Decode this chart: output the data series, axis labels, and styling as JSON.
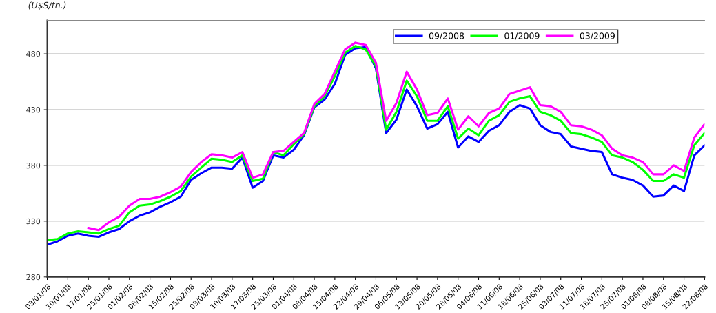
{
  "chart_data": {
    "type": "line",
    "ylabel": "(U$S/tn.)",
    "categories": [
      "03/01/08",
      null,
      "10/01/08",
      null,
      "17/01/08",
      null,
      "25/01/08",
      null,
      "01/02/08",
      null,
      "08/02/08",
      null,
      "15/02/08",
      null,
      "25/02/08",
      null,
      "03/03/08",
      null,
      "10/03/08",
      null,
      "17/03/08",
      null,
      "25/03/08",
      null,
      "01/04/08",
      null,
      "08/04/08",
      null,
      "15/04/08",
      null,
      "22/04/08",
      null,
      "29/04/08",
      null,
      "06/05/08",
      null,
      "13/05/08",
      null,
      "20/05/08",
      null,
      "28/05/08",
      null,
      "04/06/08",
      null,
      "11/06/08",
      null,
      "18/06/08",
      null,
      "25/06/08",
      null,
      "03/07/08",
      null,
      "11/07/08",
      null,
      "18/07/08",
      null,
      "25/07/08",
      null,
      "01/08/08",
      null,
      "08/08/08",
      null,
      "15/08/08",
      null,
      "22/08/08"
    ],
    "series": [
      {
        "name": "09/2008",
        "color": "#0000ff",
        "values": [
          309,
          312,
          317,
          319,
          317,
          316,
          320,
          323,
          330,
          335,
          338,
          343,
          347,
          352,
          367,
          373,
          378,
          378,
          377,
          387,
          360,
          366,
          389,
          387,
          394,
          407,
          432,
          439,
          453,
          479,
          485,
          486,
          467,
          409,
          421,
          448,
          433,
          413,
          417,
          428,
          396,
          406,
          401,
          411,
          416,
          428,
          434,
          431,
          416,
          410,
          408,
          397,
          395,
          393,
          392,
          372,
          369,
          367,
          362,
          352,
          353,
          362,
          357,
          389,
          398
        ]
      },
      {
        "name": "01/2009",
        "color": "#00ff00",
        "values": [
          313,
          314,
          319,
          321,
          320,
          319,
          323,
          326,
          338,
          344,
          345,
          348,
          352,
          357,
          370,
          378,
          386,
          385,
          383,
          389,
          366,
          368,
          392,
          389,
          399,
          408,
          433,
          442,
          460,
          481,
          487,
          484,
          469,
          412,
          428,
          456,
          442,
          420,
          420,
          433,
          404,
          413,
          407,
          420,
          425,
          437,
          440,
          442,
          428,
          425,
          420,
          409,
          408,
          405,
          401,
          389,
          387,
          383,
          376,
          366,
          366,
          372,
          369,
          398,
          409
        ]
      },
      {
        "name": "03/2009",
        "color": "#ff00ff",
        "values": [
          null,
          null,
          null,
          null,
          324,
          322,
          329,
          334,
          344,
          350,
          350,
          352,
          356,
          361,
          374,
          383,
          390,
          389,
          387,
          392,
          369,
          372,
          392,
          393,
          401,
          409,
          435,
          444,
          464,
          484,
          490,
          488,
          472,
          420,
          436,
          464,
          448,
          425,
          427,
          440,
          412,
          424,
          415,
          427,
          431,
          444,
          447,
          450,
          434,
          433,
          428,
          416,
          415,
          412,
          407,
          395,
          389,
          387,
          383,
          372,
          372,
          380,
          375,
          405,
          417
        ]
      }
    ],
    "ylim": [
      280,
      510
    ],
    "yticks": [
      280,
      330,
      380,
      430,
      480
    ],
    "grid": "y",
    "legend": "top right",
    "marker": "none",
    "line_style": "solid"
  }
}
